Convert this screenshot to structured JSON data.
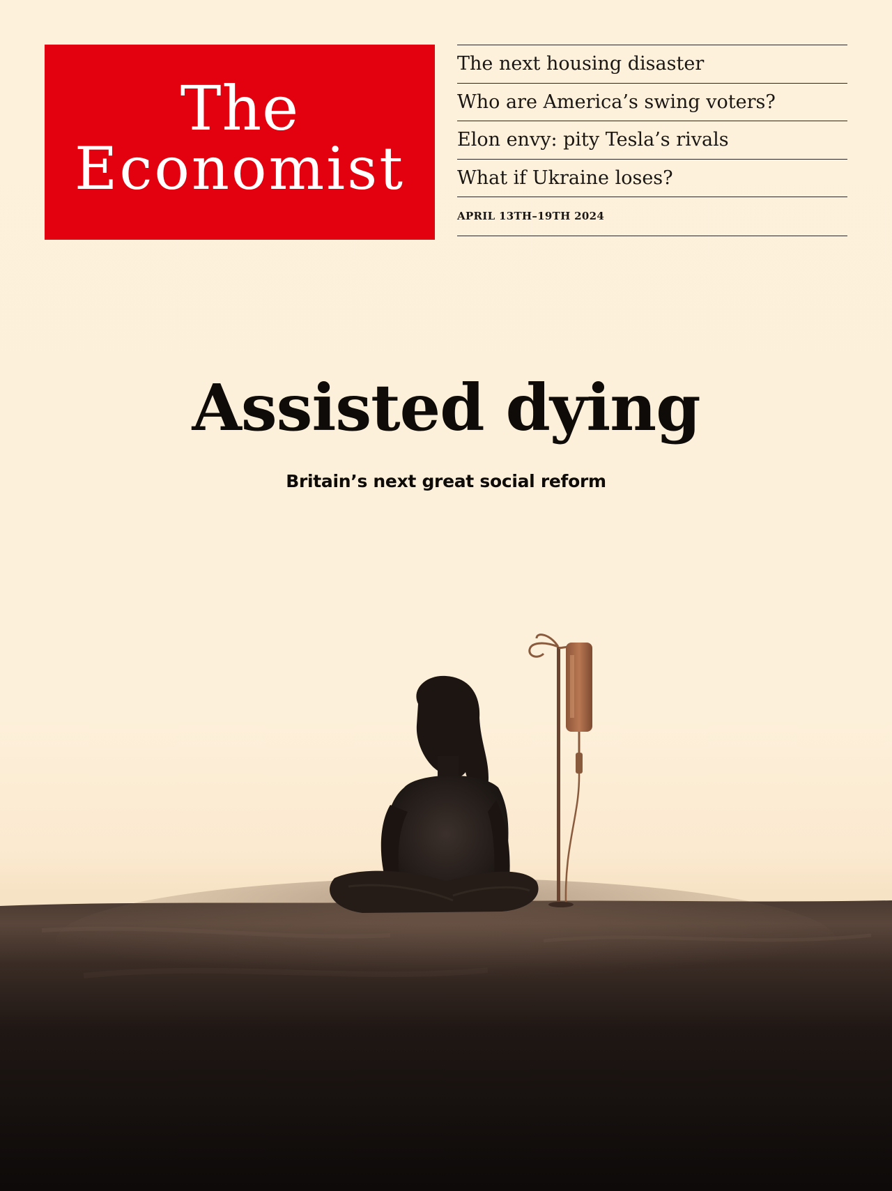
{
  "masthead": {
    "line1": "The",
    "line2": "Economist",
    "color": "#e3000f"
  },
  "coverlines": [
    "The next housing disaster",
    "Who are America’s swing voters?",
    "Elon envy: pity Tesla’s rivals",
    "What if Ukraine loses?"
  ],
  "dateline": "APRIL 13TH–19TH 2024",
  "headline": "Assisted dying",
  "subheadline": "Britain’s next great social reform",
  "illustration": {
    "subject": "silhouette-seated-figure-with-iv-drip",
    "background_color": "#fdf0da"
  }
}
